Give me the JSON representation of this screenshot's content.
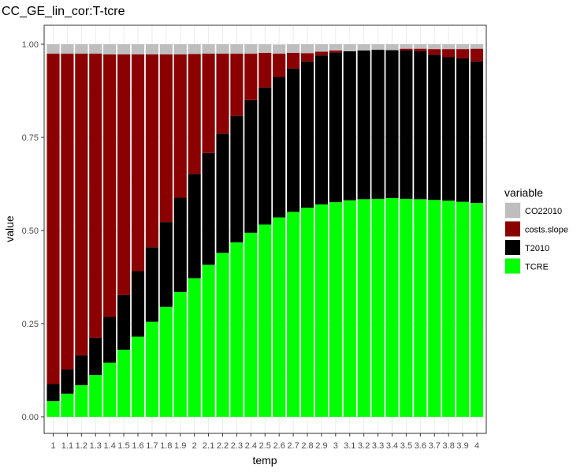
{
  "chart_data": {
    "type": "bar",
    "stacked": true,
    "title": "CC_GE_lin_cor:T-tcre",
    "xlabel": "temp",
    "ylabel": "value",
    "ylim": [
      0,
      1
    ],
    "yticks": [
      "0.00",
      "0.25",
      "0.50",
      "0.75",
      "1.00"
    ],
    "ytick_values": [
      0,
      0.25,
      0.5,
      0.75,
      1.0
    ],
    "grid": true,
    "legend_position": "right",
    "legend_title": "variable",
    "categories": [
      "1",
      "1.1",
      "1.2",
      "1.3",
      "1.4",
      "1.5",
      "1.6",
      "1.7",
      "1.8",
      "1.9",
      "2",
      "2.1",
      "2.2",
      "2.3",
      "2.4",
      "2.5",
      "2.6",
      "2.7",
      "2.8",
      "2.9",
      "3",
      "3.1",
      "3.2",
      "3.3",
      "3.4",
      "3.5",
      "3.6",
      "3.7",
      "3.8",
      "3.9",
      "4"
    ],
    "series": [
      {
        "name": "TCRE",
        "color": "#00ff00",
        "values": [
          0.042,
          0.062,
          0.085,
          0.112,
          0.145,
          0.18,
          0.215,
          0.255,
          0.295,
          0.335,
          0.372,
          0.408,
          0.44,
          0.468,
          0.494,
          0.516,
          0.535,
          0.55,
          0.561,
          0.57,
          0.576,
          0.581,
          0.584,
          0.585,
          0.587,
          0.585,
          0.584,
          0.582,
          0.58,
          0.577,
          0.574
        ]
      },
      {
        "name": "T2010",
        "color": "#000000",
        "values": [
          0.046,
          0.065,
          0.08,
          0.1,
          0.123,
          0.147,
          0.176,
          0.2,
          0.228,
          0.253,
          0.28,
          0.3,
          0.32,
          0.34,
          0.356,
          0.368,
          0.377,
          0.385,
          0.393,
          0.4,
          0.402,
          0.4,
          0.399,
          0.4,
          0.397,
          0.398,
          0.397,
          0.39,
          0.385,
          0.385,
          0.38
        ]
      },
      {
        "name": "costs.slope",
        "color": "#8b0000",
        "values": [
          0.887,
          0.848,
          0.81,
          0.763,
          0.705,
          0.646,
          0.582,
          0.518,
          0.45,
          0.385,
          0.322,
          0.267,
          0.215,
          0.167,
          0.125,
          0.093,
          0.063,
          0.042,
          0.022,
          0.01,
          0.005,
          0.0,
          0.0,
          0.0,
          0.0,
          0.005,
          0.007,
          0.015,
          0.022,
          0.025,
          0.034
        ]
      },
      {
        "name": "CO22010",
        "color": "#bebebe",
        "values": [
          0.025,
          0.025,
          0.025,
          0.025,
          0.027,
          0.027,
          0.027,
          0.027,
          0.027,
          0.027,
          0.026,
          0.025,
          0.025,
          0.025,
          0.025,
          0.023,
          0.024,
          0.023,
          0.024,
          0.02,
          0.017,
          0.019,
          0.017,
          0.015,
          0.016,
          0.012,
          0.012,
          0.013,
          0.013,
          0.013,
          0.012
        ]
      }
    ],
    "legend_order": [
      "CO22010",
      "costs.slope",
      "T2010",
      "TCRE"
    ]
  }
}
